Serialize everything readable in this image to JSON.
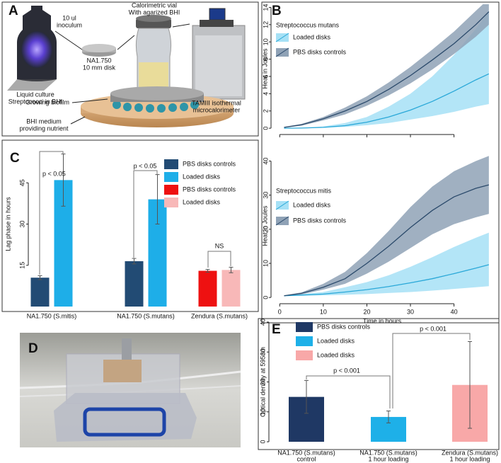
{
  "panels": [
    "A",
    "B",
    "C",
    "D",
    "E"
  ],
  "diagram": {
    "labels": [
      [
        "10 ul",
        "inoculum"
      ],
      [
        "Calorimetric vial",
        "With agarized BHI"
      ],
      [
        "Liquid culture",
        "Streptococci in BHI"
      ],
      [
        "NA1.750",
        "10 mm disk"
      ],
      [
        "TAMIII isothermal",
        "microcalorimeter"
      ],
      [
        "Growing biofilm"
      ],
      [
        "BHI medium",
        "providing nutrient"
      ]
    ]
  },
  "chart_data": [
    {
      "type": "line",
      "subtitle": "Streptococcus mutans",
      "y_label": "Heat in Joules",
      "x": [
        1,
        5,
        10,
        15,
        20,
        25,
        30,
        35,
        40,
        45,
        48
      ],
      "xlim": [
        -2,
        49
      ],
      "xticks": [
        0,
        10,
        20,
        30,
        40
      ],
      "show_xtick_labels": false,
      "ylim": [
        -0.4,
        14.2
      ],
      "yticks": [
        0,
        2,
        4,
        6,
        8,
        10,
        12,
        14
      ],
      "series": [
        {
          "name": "Loaded disks",
          "color": "#2aa8d8",
          "band_color": "#a6e1f6",
          "values": [
            0,
            0.02,
            0.1,
            0.3,
            0.7,
            1.3,
            2.1,
            3.1,
            4.3,
            5.6,
            6.3
          ],
          "lower": [
            0,
            0.01,
            0.05,
            0.15,
            0.35,
            0.6,
            1.0,
            1.4,
            1.9,
            2.5,
            2.8
          ],
          "upper": [
            0,
            0.04,
            0.2,
            0.6,
            1.3,
            2.5,
            4.0,
            6.0,
            8.5,
            11.5,
            13.5
          ]
        },
        {
          "name": "PBS disks controls",
          "color": "#2b4a6b",
          "band_color": "#8fa2b6",
          "values": [
            0.1,
            0.4,
            1.1,
            2.0,
            3.1,
            4.5,
            6.1,
            7.9,
            9.8,
            12.0,
            13.5
          ],
          "lower": [
            0.05,
            0.3,
            0.9,
            1.6,
            2.6,
            3.8,
            5.2,
            6.8,
            8.6,
            10.6,
            12.0
          ],
          "upper": [
            0.15,
            0.5,
            1.3,
            2.4,
            3.7,
            5.3,
            7.1,
            9.1,
            11.2,
            13.6,
            15.0
          ]
        }
      ]
    },
    {
      "type": "line",
      "subtitle": "Streptococcus mitis",
      "y_label": "Heat in Joules",
      "x_label": "Time in hours",
      "x": [
        1,
        5,
        10,
        15,
        20,
        25,
        30,
        35,
        40,
        45,
        48
      ],
      "xlim": [
        -2,
        49
      ],
      "xticks": [
        0,
        10,
        20,
        30,
        40
      ],
      "show_xtick_labels": true,
      "ylim": [
        -1,
        43
      ],
      "yticks": [
        0,
        10,
        20,
        30,
        40
      ],
      "series": [
        {
          "name": "Loaded disks",
          "color": "#2aa8d8",
          "band_color": "#a6e1f6",
          "values": [
            0.5,
            0.7,
            1.0,
            1.6,
            2.3,
            3.2,
            4.3,
            5.5,
            7.0,
            8.6,
            9.6
          ],
          "lower": [
            0.4,
            0.5,
            0.6,
            0.8,
            1.0,
            1.3,
            1.6,
            2.0,
            2.5,
            3.0,
            3.3
          ],
          "upper": [
            0.6,
            1.0,
            1.6,
            3.0,
            4.5,
            6.5,
            9.0,
            11.8,
            14.8,
            17.5,
            19.0
          ]
        },
        {
          "name": "PBS disks controls",
          "color": "#2b4a6b",
          "band_color": "#8fa2b6",
          "values": [
            0.5,
            1.2,
            3,
            5.5,
            10,
            15,
            20.5,
            25.5,
            29.5,
            32,
            33
          ],
          "lower": [
            0.4,
            0.9,
            2.3,
            4,
            7,
            10.5,
            14.5,
            18.5,
            21.5,
            23.5,
            24.5
          ],
          "upper": [
            0.6,
            1.5,
            4,
            7.5,
            13,
            19.5,
            26.5,
            32.5,
            37,
            40,
            41.5
          ]
        }
      ]
    },
    {
      "type": "bar",
      "y_label": "Lag phase in hours",
      "categories": [
        [
          "NA1.750 (S.mitis)"
        ],
        [
          "NA1.750 (S.mutans)"
        ],
        [
          "Zendura (S.mutans)"
        ]
      ],
      "ylim": [
        0,
        60
      ],
      "yticks": [
        15,
        30,
        45
      ],
      "series": [
        {
          "name": "PBS disks controls",
          "color": "#224b74",
          "values": [
            10.5,
            16.5,
            null
          ],
          "errors": [
            0.7,
            1,
            null
          ]
        },
        {
          "name": "Loaded disks",
          "color": "#1eaee8",
          "values": [
            46,
            39,
            null
          ],
          "errors": [
            9.5,
            9,
            null
          ]
        },
        {
          "name": "PBS disks controls",
          "color": "#ee1111",
          "values": [
            null,
            null,
            13
          ],
          "errors": [
            null,
            null,
            0.5
          ]
        },
        {
          "name": "Loaded disks",
          "color": "#f8b8b8",
          "values": [
            null,
            null,
            13.3
          ],
          "errors": [
            null,
            null,
            1
          ]
        }
      ],
      "annotations": [
        "p < 0.05",
        "p < 0.05",
        "NS"
      ]
    },
    {
      "type": "bar",
      "y_label": "Optical density at 595nm",
      "categories": [
        [
          "NA1.750 (S.mutans)",
          "control"
        ],
        [
          "NA1.750 (S.mutans)",
          "1 hour loading"
        ],
        [
          "Zendura (S.mutans)",
          "1 hour loading"
        ]
      ],
      "ylim": [
        0,
        40
      ],
      "yticks": [
        0,
        10,
        20,
        30,
        40
      ],
      "series": [
        {
          "name": "PBS disks controls",
          "color": "#1f3864",
          "values": [
            15,
            null,
            null
          ],
          "errors": [
            5.5,
            null,
            null
          ]
        },
        {
          "name": "Loaded disks",
          "color": "#1eb0e8",
          "values": [
            null,
            8.3,
            null
          ],
          "errors": [
            null,
            2,
            null
          ]
        },
        {
          "name": "Loaded disks",
          "color": "#f8a8a8",
          "values": [
            null,
            null,
            19
          ],
          "errors": [
            null,
            null,
            14.5
          ]
        }
      ],
      "annotations": [
        "p < 0.001",
        "p < 0.001"
      ]
    }
  ]
}
